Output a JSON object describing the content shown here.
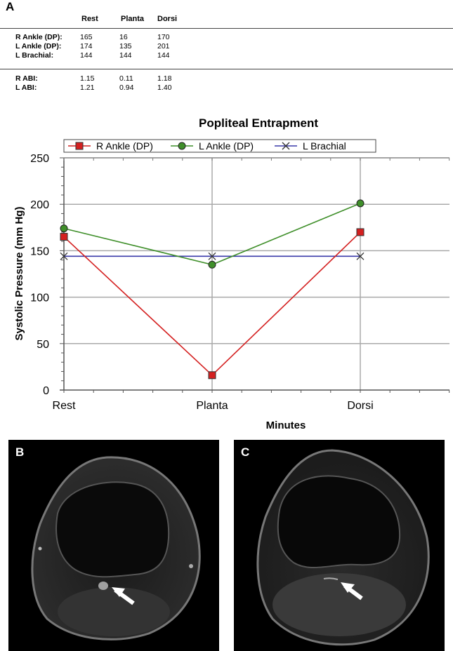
{
  "panels": {
    "a": "A",
    "b": "B",
    "c": "C"
  },
  "table": {
    "columns": [
      "Rest",
      "Planta",
      "Dorsi"
    ],
    "pressure_rows": [
      {
        "label": "R Ankle (DP):",
        "values": [
          "165",
          "16",
          "170"
        ]
      },
      {
        "label": "L Ankle (DP):",
        "values": [
          "174",
          "135",
          "201"
        ]
      },
      {
        "label": "L Brachial:",
        "values": [
          "144",
          "144",
          "144"
        ]
      }
    ],
    "abi_rows": [
      {
        "label": "R ABI:",
        "values": [
          "1.15",
          "0.11",
          "1.18"
        ]
      },
      {
        "label": "L ABI:",
        "values": [
          "1.21",
          "0.94",
          "1.40"
        ]
      }
    ]
  },
  "chart_data": {
    "type": "line",
    "title": "Popliteal Entrapment",
    "xlabel": "Minutes",
    "ylabel": "Systolic Pressure (mm Hg)",
    "categories": [
      "Rest",
      "Planta",
      "Dorsi"
    ],
    "ylim": [
      0,
      250
    ],
    "yticks": [
      0,
      50,
      100,
      150,
      200,
      250
    ],
    "grid": true,
    "legend_position": "top",
    "series": [
      {
        "name": "R Ankle (DP)",
        "values": [
          165,
          16,
          170
        ],
        "color": "#d42020",
        "marker": "square"
      },
      {
        "name": "L Ankle (DP)",
        "values": [
          174,
          135,
          201
        ],
        "color": "#3f8f2a",
        "marker": "circle"
      },
      {
        "name": "L Brachial",
        "values": [
          144,
          144,
          144
        ],
        "color": "#3a3aaa",
        "marker": "x"
      }
    ]
  },
  "images": {
    "b": {
      "arrow_color": "#ffffff"
    },
    "c": {
      "arrow_color": "#ffffff"
    }
  }
}
